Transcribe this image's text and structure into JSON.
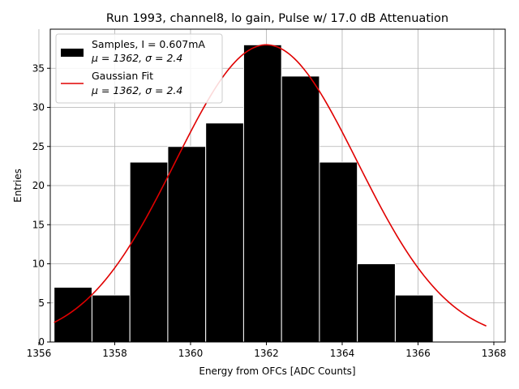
{
  "chart_data": {
    "type": "bar",
    "title": "Run 1993, channel8, lo gain, Pulse w/ 17.0 dB Attenuation",
    "xlabel": "Energy from OFCs [ADC Counts]",
    "ylabel": "Entries",
    "xlim": [
      1356.3,
      1368.3
    ],
    "ylim": [
      0,
      40
    ],
    "xticks": [
      1356,
      1358,
      1360,
      1362,
      1364,
      1366,
      1368
    ],
    "xtick_labels": [
      "1356",
      "1358",
      "1360",
      "1362",
      "1364",
      "1366",
      "1368"
    ],
    "yticks": [
      0,
      5,
      10,
      15,
      20,
      25,
      30,
      35
    ],
    "ytick_labels": [
      "0",
      "5",
      "10",
      "15",
      "20",
      "25",
      "30",
      "35"
    ],
    "grid": true,
    "bins": [
      {
        "left": 1356.4,
        "right": 1357.4,
        "value": 7
      },
      {
        "left": 1357.4,
        "right": 1358.4,
        "value": 6
      },
      {
        "left": 1358.4,
        "right": 1359.4,
        "value": 23
      },
      {
        "left": 1359.4,
        "right": 1360.4,
        "value": 25
      },
      {
        "left": 1360.4,
        "right": 1361.4,
        "value": 28
      },
      {
        "left": 1361.4,
        "right": 1362.4,
        "value": 38
      },
      {
        "left": 1362.4,
        "right": 1363.4,
        "value": 34
      },
      {
        "left": 1363.4,
        "right": 1364.4,
        "value": 23
      },
      {
        "left": 1364.4,
        "right": 1365.4,
        "value": 10
      },
      {
        "left": 1365.4,
        "right": 1366.4,
        "value": 6
      }
    ],
    "fit": {
      "name": "Gaussian Fit",
      "amplitude": 38,
      "mean": 1362.0,
      "sigma": 2.4,
      "x_range": [
        1356.4,
        1367.8
      ]
    },
    "legend": {
      "placement": "top-left",
      "entries": [
        {
          "line1": "Samples, I = 0.607mA",
          "line2": "μ = 1362, σ = 2.4",
          "kind": "patch"
        },
        {
          "line1": "Gaussian Fit",
          "line2": "μ = 1362, σ = 2.4",
          "kind": "line"
        }
      ]
    },
    "colors": {
      "bars": "#000000",
      "bar_edge": "#ffffff",
      "fit_line": "#e00000",
      "grid": "#b0b0b0"
    }
  }
}
